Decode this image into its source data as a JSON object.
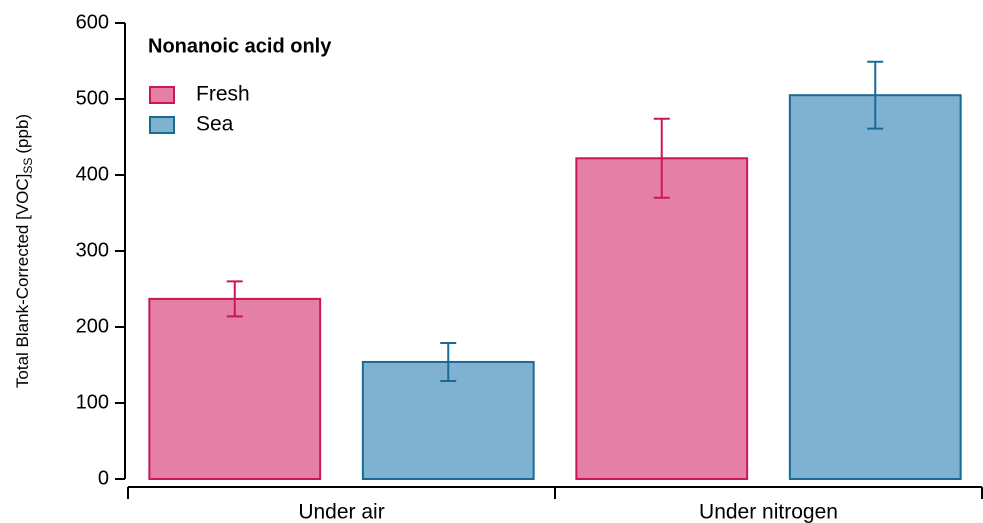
{
  "chart_data": {
    "type": "bar",
    "ylabel": "Total Blank-Corrected [VOC]",
    "ylabel_subscript": "SS",
    "ylabel_unit": "(ppb)",
    "legend_title": "Nonanoic acid only",
    "categories": [
      "Under air",
      "Under nitrogen"
    ],
    "series": [
      {
        "name": "Fresh",
        "color": "#e57fa6",
        "edge_color": "#c8185a",
        "values": [
          237,
          422
        ],
        "errors": [
          23,
          52
        ]
      },
      {
        "name": "Sea",
        "color": "#7eb2d0",
        "edge_color": "#1a6a96",
        "values": [
          154,
          505
        ],
        "errors": [
          25,
          44
        ]
      }
    ],
    "ylim": [
      0,
      600
    ],
    "yticks": [
      0,
      100,
      200,
      300,
      400,
      500,
      600
    ],
    "grid": false,
    "legend": "upper left"
  }
}
